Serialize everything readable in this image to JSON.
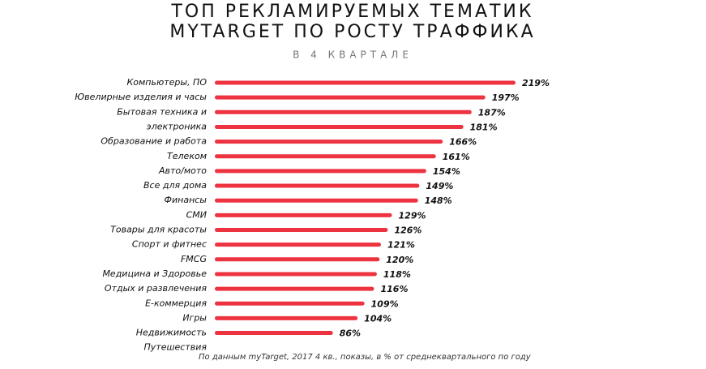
{
  "chart_data": {
    "type": "bar",
    "orientation": "horizontal",
    "title": [
      "ТОП РЕКЛАМИРУЕМЫХ ТЕМАТИК",
      "MYTARGET ПО РОСТУ ТРАФФИКА"
    ],
    "subtitle": "В 4 КВАРТАЛЕ",
    "note": "По данным myTarget, 2017 4 кв., показы, в % от среднеквартального по году",
    "categories": [
      "Компьютеры, ПО",
      "Ювелирные изделия и часы",
      "Бытовая техника и",
      "электроника",
      "Образование и работа",
      "Телеком",
      "Авто/мото",
      "Все для дома",
      "Финансы",
      "СМИ",
      "Товары для красоты",
      "Спорт и фитнес",
      "FMCG",
      "Медицина и Здоровье",
      "Отдых и развлечения",
      "E-коммерция",
      "Игры",
      "Недвижимость",
      "Путешествия"
    ],
    "values": [
      219,
      197,
      187,
      181,
      166,
      161,
      154,
      149,
      148,
      129,
      126,
      121,
      120,
      118,
      116,
      109,
      104,
      86,
      null
    ],
    "value_labels": [
      "219%",
      "197%",
      "187%",
      "181%",
      "166%",
      "161%",
      "154%",
      "149%",
      "148%",
      "129%",
      "126%",
      "121%",
      "120%",
      "118%",
      "116%",
      "109%",
      "104%",
      "86%",
      null
    ],
    "color": "#ee3340"
  }
}
